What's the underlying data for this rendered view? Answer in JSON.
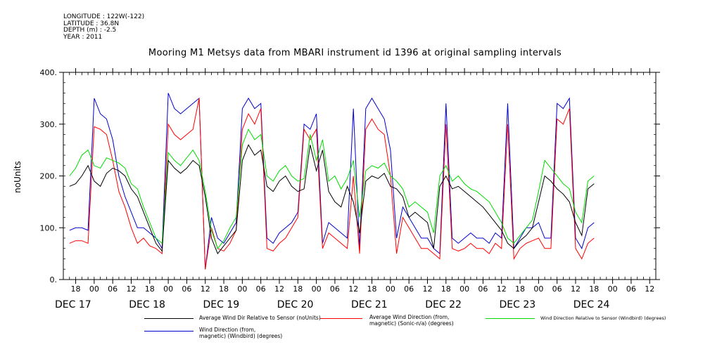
{
  "meta": {
    "longitude": "LONGITUDE : 122W(-122)",
    "latitude": "LATITUDE : 36.8N",
    "depth": "DEPTH (m) : -2.5",
    "year": "YEAR : 2011"
  },
  "chart_data": {
    "type": "line",
    "title": "Mooring M1 Metsys data from MBARI instrument id 1396 at original sampling intervals",
    "ylabel": "noUnits",
    "ylim": [
      0,
      400
    ],
    "yticks": [
      "0.",
      "100.",
      "200.",
      "300.",
      "400."
    ],
    "xlim_hours": [
      -10,
      182
    ],
    "hour_ticks": [
      "18",
      "00",
      "06",
      "12",
      "18",
      "00",
      "06",
      "12",
      "18",
      "00",
      "06",
      "12",
      "18",
      "00",
      "06",
      "12",
      "18",
      "00",
      "06",
      "12",
      "18",
      "00",
      "06",
      "12",
      "18",
      "00",
      "06",
      "12",
      "18",
      "00",
      "06",
      "12"
    ],
    "day_labels": [
      "DEC 17",
      "DEC 18",
      "DEC 19",
      "DEC 20",
      "DEC 21",
      "DEC 22",
      "DEC 23",
      "DEC 24"
    ],
    "grid": false,
    "series": [
      {
        "name": "Average Wind Dir Relative to Sensor (noUnits)",
        "color": "#000000",
        "values": [
          180,
          185,
          200,
          220,
          190,
          180,
          205,
          215,
          210,
          200,
          175,
          160,
          130,
          100,
          70,
          55,
          230,
          215,
          205,
          215,
          230,
          220,
          160,
          80,
          50,
          65,
          80,
          95,
          230,
          260,
          240,
          250,
          180,
          170,
          190,
          200,
          180,
          170,
          175,
          260,
          210,
          250,
          170,
          150,
          140,
          180,
          150,
          90,
          190,
          200,
          195,
          205,
          180,
          175,
          160,
          120,
          130,
          120,
          110,
          60,
          180,
          200,
          175,
          180,
          170,
          160,
          150,
          140,
          125,
          110,
          95,
          70,
          60,
          75,
          85,
          100,
          150,
          200,
          190,
          175,
          165,
          150,
          110,
          85,
          175,
          185
        ]
      },
      {
        "name": "Average Wind Direction (from, magnetic) (Sonic-n/a) (degrees)",
        "color": "#ff0000",
        "values": [
          70,
          75,
          75,
          70,
          295,
          290,
          280,
          230,
          170,
          140,
          100,
          70,
          80,
          65,
          60,
          50,
          300,
          280,
          270,
          280,
          290,
          350,
          20,
          100,
          60,
          55,
          70,
          95,
          290,
          320,
          300,
          330,
          60,
          55,
          70,
          80,
          100,
          120,
          290,
          270,
          290,
          60,
          90,
          80,
          70,
          60,
          200,
          50,
          290,
          310,
          290,
          280,
          200,
          50,
          120,
          100,
          80,
          60,
          60,
          50,
          40,
          300,
          60,
          55,
          60,
          70,
          60,
          60,
          50,
          70,
          60,
          300,
          40,
          60,
          70,
          75,
          80,
          60,
          60,
          310,
          300,
          330,
          60,
          40,
          70,
          80
        ]
      },
      {
        "name": "Wind Direction Relative to Sensor (Windbird) (degrees)",
        "color": "#00dd00",
        "values": [
          200,
          215,
          240,
          250,
          220,
          215,
          235,
          230,
          225,
          215,
          185,
          175,
          140,
          110,
          80,
          70,
          245,
          230,
          220,
          235,
          250,
          230,
          170,
          95,
          60,
          75,
          100,
          120,
          260,
          290,
          270,
          280,
          200,
          190,
          210,
          220,
          200,
          190,
          195,
          280,
          230,
          270,
          190,
          200,
          175,
          195,
          230,
          120,
          210,
          220,
          215,
          225,
          200,
          190,
          175,
          140,
          150,
          140,
          130,
          90,
          200,
          220,
          190,
          200,
          185,
          175,
          170,
          160,
          150,
          130,
          110,
          80,
          70,
          85,
          100,
          115,
          170,
          230,
          215,
          200,
          185,
          175,
          130,
          110,
          190,
          200
        ]
      },
      {
        "name": "Wind Direction (from, magnetic) (Windbird) (degrees)",
        "color": "#0000cc",
        "values": [
          95,
          100,
          100,
          95,
          350,
          320,
          310,
          270,
          200,
          160,
          130,
          100,
          100,
          90,
          80,
          60,
          360,
          330,
          320,
          330,
          340,
          350,
          20,
          120,
          80,
          70,
          90,
          110,
          330,
          350,
          330,
          340,
          80,
          70,
          90,
          100,
          110,
          130,
          300,
          290,
          320,
          70,
          110,
          100,
          90,
          80,
          330,
          60,
          330,
          350,
          330,
          310,
          250,
          80,
          140,
          120,
          100,
          80,
          80,
          60,
          50,
          340,
          80,
          70,
          80,
          90,
          80,
          80,
          70,
          90,
          80,
          340,
          60,
          80,
          100,
          100,
          110,
          80,
          80,
          340,
          330,
          350,
          80,
          60,
          100,
          110
        ]
      }
    ]
  },
  "legend": [
    {
      "label": "Average Wind Dir Relative to Sensor (noUnits)",
      "color": "#000000"
    },
    {
      "label": "Average Wind Direction (from,\nmagnetic) (Sonic-n/a) (degrees)",
      "color": "#ff0000"
    },
    {
      "label": "Wind Direction Relative to Sensor (Windbird) (degrees)",
      "color": "#00dd00"
    },
    {
      "label": "Wind Direction (from,\nmagnetic) (Windbird) (degrees)",
      "color": "#0000cc"
    }
  ]
}
